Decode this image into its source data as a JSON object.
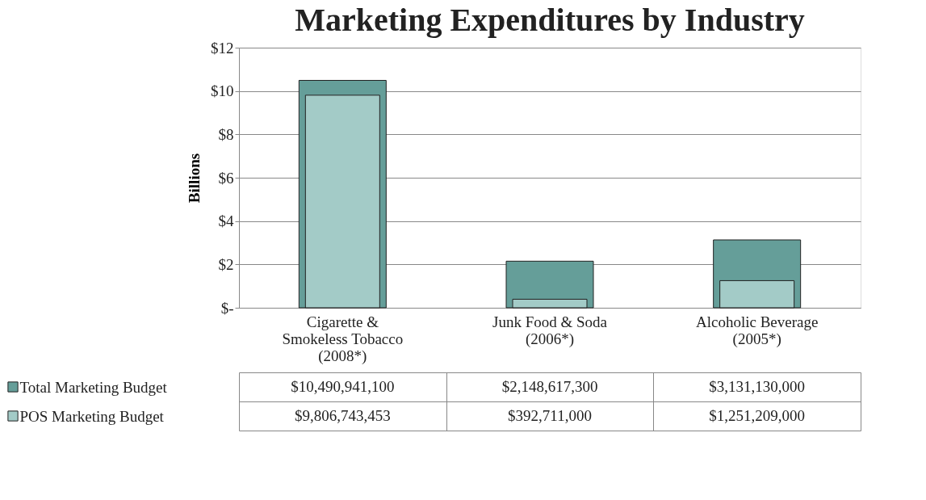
{
  "chart_data": {
    "type": "bar",
    "title": "Marketing Expenditures by Industry",
    "ylabel": "Billions",
    "categories": [
      "Cigarette & Smokeless Tobacco (2008*)",
      "Junk Food & Soda (2006*)",
      "Alcoholic Beverage (2005*)"
    ],
    "series": [
      {
        "name": "Total Marketing Budget",
        "color": "#659e99",
        "values": [
          10.491,
          2.149,
          3.131
        ]
      },
      {
        "name": "POS Marketing Budget",
        "color": "#a3cbc7",
        "values": [
          9.807,
          0.393,
          1.251
        ]
      }
    ],
    "annotations": [
      "$10,490,941,100",
      "$2,148,617,300",
      "$3,131,130,000",
      "$9,806,743,453",
      "$392,711,000",
      "$1,251,209,000"
    ],
    "ylim": [
      0,
      12
    ],
    "yticks": [
      {
        "value": 0,
        "label": "$-"
      },
      {
        "value": 2,
        "label": "$2"
      },
      {
        "value": 4,
        "label": "$4"
      },
      {
        "value": 6,
        "label": "$6"
      },
      {
        "value": 8,
        "label": "$8"
      },
      {
        "value": 10,
        "label": "$10"
      },
      {
        "value": 12,
        "label": "$12"
      }
    ],
    "grid": "y",
    "legend": "bottom"
  }
}
